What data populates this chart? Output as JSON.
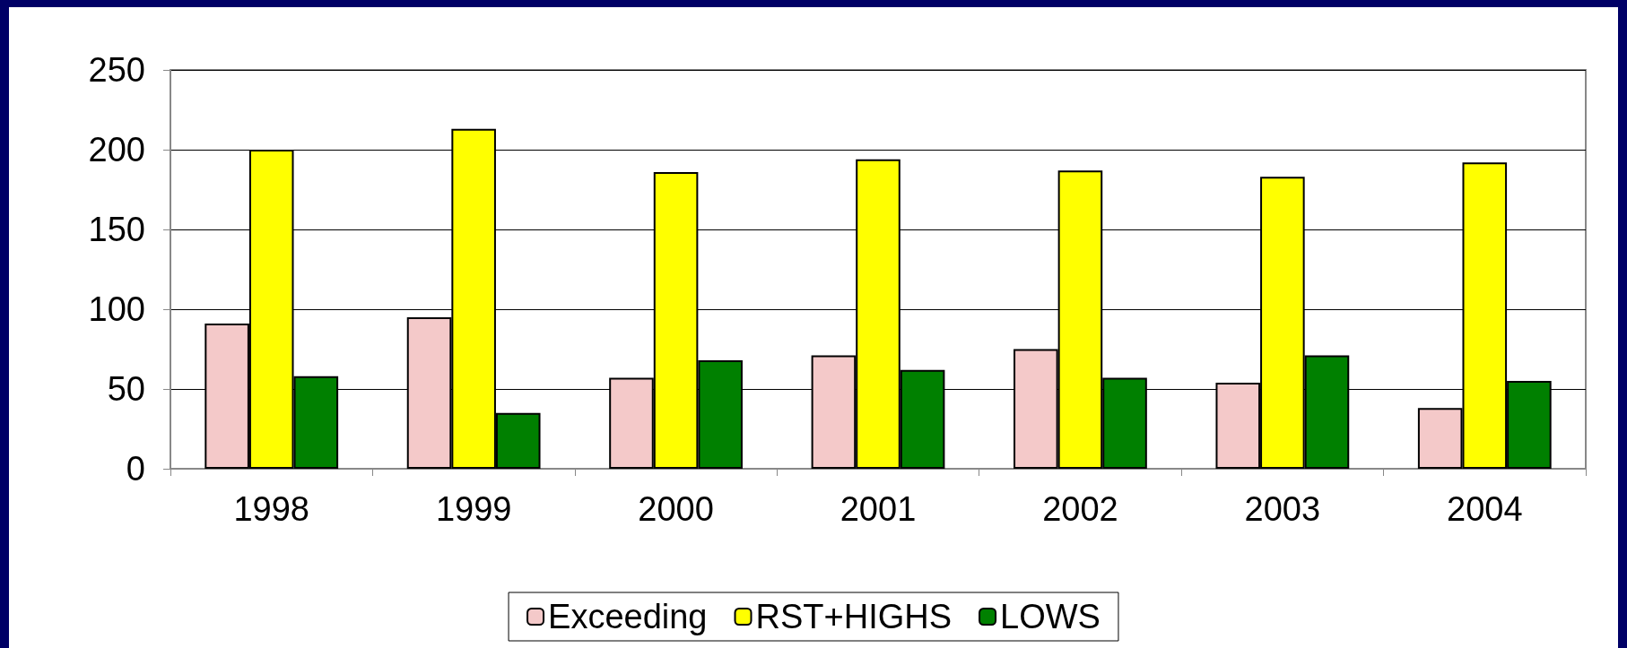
{
  "chart_data": {
    "type": "bar",
    "categories": [
      "1998",
      "1999",
      "2000",
      "2001",
      "2002",
      "2003",
      "2004"
    ],
    "series": [
      {
        "name": "Exceeding",
        "color": "#f4c9c9",
        "values": [
          91,
          95,
          57,
          71,
          75,
          54,
          38
        ]
      },
      {
        "name": "RST+HIGHS",
        "color": "#ffff00",
        "values": [
          200,
          213,
          186,
          194,
          187,
          183,
          192
        ]
      },
      {
        "name": "LOWS",
        "color": "#008000",
        "values": [
          58,
          35,
          68,
          62,
          57,
          71,
          55
        ]
      }
    ],
    "ylim": [
      0,
      250
    ],
    "yticks": [
      0,
      50,
      100,
      150,
      200,
      250
    ],
    "grid": "y",
    "legend": "bottom"
  }
}
